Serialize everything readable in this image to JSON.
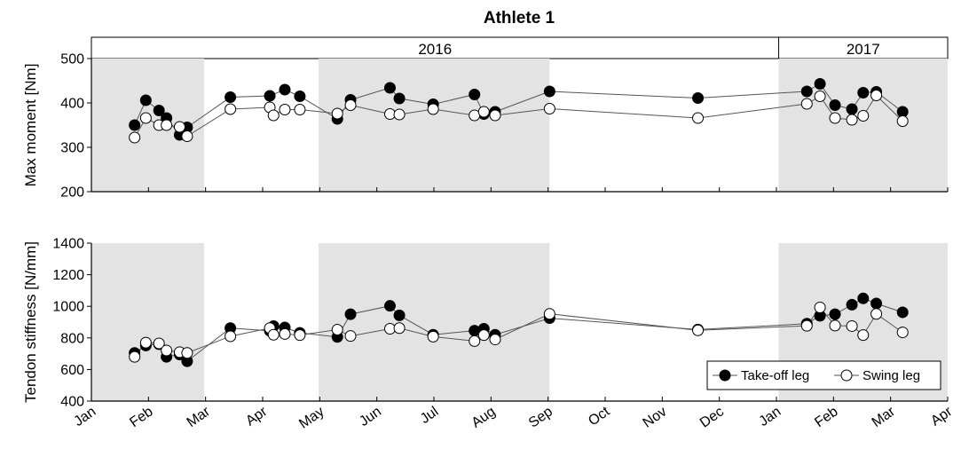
{
  "chart_data": {
    "type": "scatter",
    "title": "Athlete 1",
    "years": [
      {
        "label": "2016",
        "start": "2016-01-01",
        "end": "2017-01-01"
      },
      {
        "label": "2017",
        "start": "2017-01-01",
        "end": "2017-04-01"
      }
    ],
    "x_ticks": [
      "Jan",
      "Feb",
      "Mar",
      "Apr",
      "May",
      "Jun",
      "Jul",
      "Aug",
      "Sep",
      "Oct",
      "Nov",
      "Dec",
      "Jan",
      "Feb",
      "Mar",
      "Apr"
    ],
    "xlim": [
      "2016-01-01",
      "2017-04-01"
    ],
    "shaded_periods": [
      [
        "2016-01-01",
        "2016-03-01"
      ],
      [
        "2016-05-01",
        "2016-09-01"
      ],
      [
        "2017-01-01",
        "2017-04-01"
      ]
    ],
    "colors": {
      "shade": "#e3e3e3",
      "take_off": "#000000",
      "swing": "#ffffff",
      "line": "#555555"
    },
    "legend": {
      "position": "bottom-right",
      "entries": [
        "Take-off leg",
        "Swing leg"
      ]
    },
    "panels": [
      {
        "ylabel": "Max moment [Nm]",
        "ylim": [
          200,
          500
        ],
        "yticks": [
          200,
          300,
          400,
          500
        ],
        "series": [
          {
            "name": "Take-off leg",
            "points": [
              [
                "2016-01-24",
                350
              ],
              [
                "2016-01-30",
                406
              ],
              [
                "2016-02-06",
                383
              ],
              [
                "2016-02-10",
                366
              ],
              [
                "2016-02-17",
                328
              ],
              [
                "2016-02-21",
                345
              ],
              [
                "2016-03-15",
                413
              ],
              [
                "2016-04-05",
                416
              ],
              [
                "2016-04-13",
                430
              ],
              [
                "2016-04-21",
                415
              ],
              [
                "2016-05-11",
                364
              ],
              [
                "2016-05-18",
                407
              ],
              [
                "2016-06-08",
                434
              ],
              [
                "2016-06-13",
                410
              ],
              [
                "2016-07-01",
                397
              ],
              [
                "2016-07-23",
                419
              ],
              [
                "2016-07-28",
                375
              ],
              [
                "2016-08-03",
                380
              ],
              [
                "2016-09-01",
                426
              ],
              [
                "2016-11-19",
                411
              ],
              [
                "2017-01-16",
                426
              ],
              [
                "2017-01-23",
                443
              ],
              [
                "2017-01-31",
                395
              ],
              [
                "2017-02-09",
                386
              ],
              [
                "2017-02-15",
                423
              ],
              [
                "2017-02-22",
                425
              ],
              [
                "2017-03-08",
                380
              ]
            ]
          },
          {
            "name": "Swing leg",
            "points": [
              [
                "2016-01-24",
                322
              ],
              [
                "2016-01-30",
                366
              ],
              [
                "2016-02-06",
                350
              ],
              [
                "2016-02-10",
                350
              ],
              [
                "2016-02-17",
                346
              ],
              [
                "2016-02-21",
                325
              ],
              [
                "2016-03-15",
                386
              ],
              [
                "2016-04-05",
                390
              ],
              [
                "2016-04-07",
                372
              ],
              [
                "2016-04-13",
                385
              ],
              [
                "2016-04-21",
                385
              ],
              [
                "2016-05-11",
                376
              ],
              [
                "2016-05-18",
                395
              ],
              [
                "2016-06-08",
                375
              ],
              [
                "2016-06-13",
                374
              ],
              [
                "2016-07-01",
                386
              ],
              [
                "2016-07-23",
                372
              ],
              [
                "2016-07-28",
                380
              ],
              [
                "2016-08-03",
                372
              ],
              [
                "2016-09-01",
                387
              ],
              [
                "2016-11-19",
                366
              ],
              [
                "2017-01-16",
                398
              ],
              [
                "2017-01-23",
                415
              ],
              [
                "2017-01-31",
                366
              ],
              [
                "2017-02-09",
                362
              ],
              [
                "2017-02-15",
                371
              ],
              [
                "2017-02-22",
                417
              ],
              [
                "2017-03-08",
                359
              ]
            ]
          }
        ]
      },
      {
        "ylabel": "Tendon stiffness [N/mm]",
        "ylim": [
          400,
          1400
        ],
        "yticks": [
          400,
          600,
          800,
          1000,
          1200,
          1400
        ],
        "series": [
          {
            "name": "Take-off leg",
            "points": [
              [
                "2016-01-24",
                705
              ],
              [
                "2016-01-30",
                752
              ],
              [
                "2016-02-06",
                760
              ],
              [
                "2016-02-10",
                680
              ],
              [
                "2016-02-17",
                695
              ],
              [
                "2016-02-21",
                652
              ],
              [
                "2016-03-15",
                862
              ],
              [
                "2016-04-05",
                845
              ],
              [
                "2016-04-07",
                875
              ],
              [
                "2016-04-13",
                866
              ],
              [
                "2016-04-21",
                832
              ],
              [
                "2016-05-11",
                806
              ],
              [
                "2016-05-18",
                950
              ],
              [
                "2016-06-08",
                1003
              ],
              [
                "2016-06-13",
                943
              ],
              [
                "2016-07-01",
                820
              ],
              [
                "2016-07-23",
                846
              ],
              [
                "2016-07-28",
                858
              ],
              [
                "2016-08-03",
                820
              ],
              [
                "2016-09-01",
                925
              ],
              [
                "2016-11-19",
                853
              ],
              [
                "2017-01-16",
                890
              ],
              [
                "2017-01-23",
                940
              ],
              [
                "2017-01-31",
                950
              ],
              [
                "2017-02-09",
                1010
              ],
              [
                "2017-02-15",
                1050
              ],
              [
                "2017-02-22",
                1018
              ],
              [
                "2017-03-08",
                962
              ]
            ]
          },
          {
            "name": "Swing leg",
            "points": [
              [
                "2016-01-24",
                680
              ],
              [
                "2016-01-30",
                770
              ],
              [
                "2016-02-06",
                765
              ],
              [
                "2016-02-10",
                720
              ],
              [
                "2016-02-17",
                710
              ],
              [
                "2016-02-21",
                705
              ],
              [
                "2016-03-15",
                810
              ],
              [
                "2016-04-05",
                862
              ],
              [
                "2016-04-07",
                820
              ],
              [
                "2016-04-13",
                825
              ],
              [
                "2016-04-21",
                818
              ],
              [
                "2016-05-11",
                852
              ],
              [
                "2016-05-18",
                812
              ],
              [
                "2016-06-08",
                858
              ],
              [
                "2016-06-13",
                862
              ],
              [
                "2016-07-01",
                808
              ],
              [
                "2016-07-23",
                780
              ],
              [
                "2016-07-28",
                818
              ],
              [
                "2016-08-03",
                790
              ],
              [
                "2016-09-01",
                952
              ],
              [
                "2016-11-19",
                848
              ],
              [
                "2017-01-16",
                877
              ],
              [
                "2017-01-23",
                993
              ],
              [
                "2017-01-31",
                878
              ],
              [
                "2017-02-09",
                875
              ],
              [
                "2017-02-15",
                818
              ],
              [
                "2017-02-22",
                952
              ],
              [
                "2017-03-08",
                835
              ]
            ]
          }
        ]
      }
    ]
  }
}
